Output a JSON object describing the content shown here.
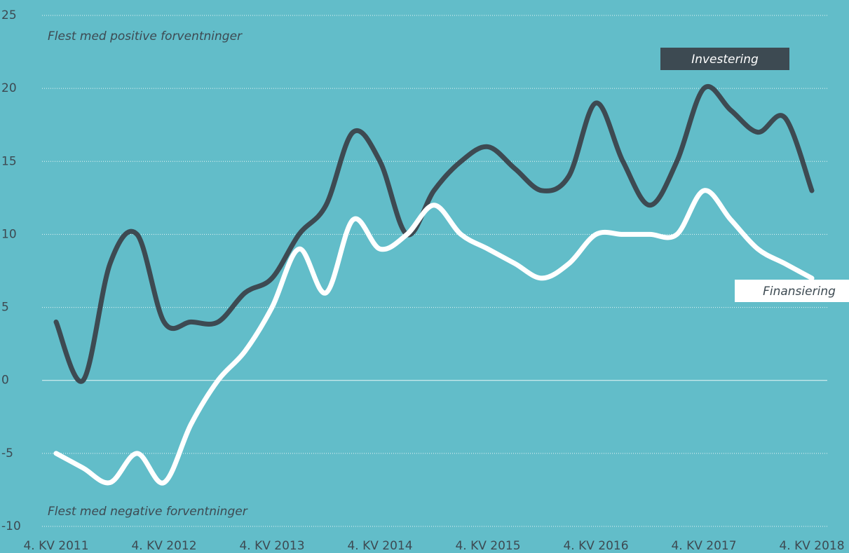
{
  "chart_data": {
    "type": "line",
    "annotations": [
      "Flest med positive forventninger",
      "Flest med negative forventninger"
    ],
    "categories": [
      "4. KV 2011",
      null,
      null,
      null,
      "4. KV 2012",
      null,
      null,
      null,
      "4. KV 2013",
      null,
      null,
      null,
      "4. KV 2014",
      null,
      null,
      null,
      "4. KV 2015",
      null,
      null,
      null,
      "4. KV 2016",
      null,
      null,
      null,
      "4. KV 2017",
      null,
      null,
      null,
      "4. KV 2018"
    ],
    "series": [
      {
        "name": "Investering",
        "color": "#3d4a52",
        "values": [
          4,
          0,
          8,
          10,
          4,
          4,
          4,
          6,
          7,
          10,
          12,
          17,
          15,
          10,
          13,
          15,
          16,
          14.5,
          13,
          14,
          19,
          15,
          12,
          15,
          20,
          18.5,
          17,
          18,
          13
        ]
      },
      {
        "name": "Finansiering",
        "color": "#ffffff",
        "values": [
          -5,
          -6,
          -7,
          -5,
          -7,
          -3,
          0,
          2,
          5,
          9,
          6,
          11,
          9,
          10,
          12,
          10,
          9,
          8,
          7,
          8,
          10,
          10,
          10,
          10,
          13,
          11,
          9,
          8,
          7
        ]
      }
    ],
    "ylim": [
      -10,
      25
    ],
    "yticks": [
      -10,
      -5,
      0,
      5,
      10,
      15,
      20,
      25
    ],
    "grid": true
  }
}
